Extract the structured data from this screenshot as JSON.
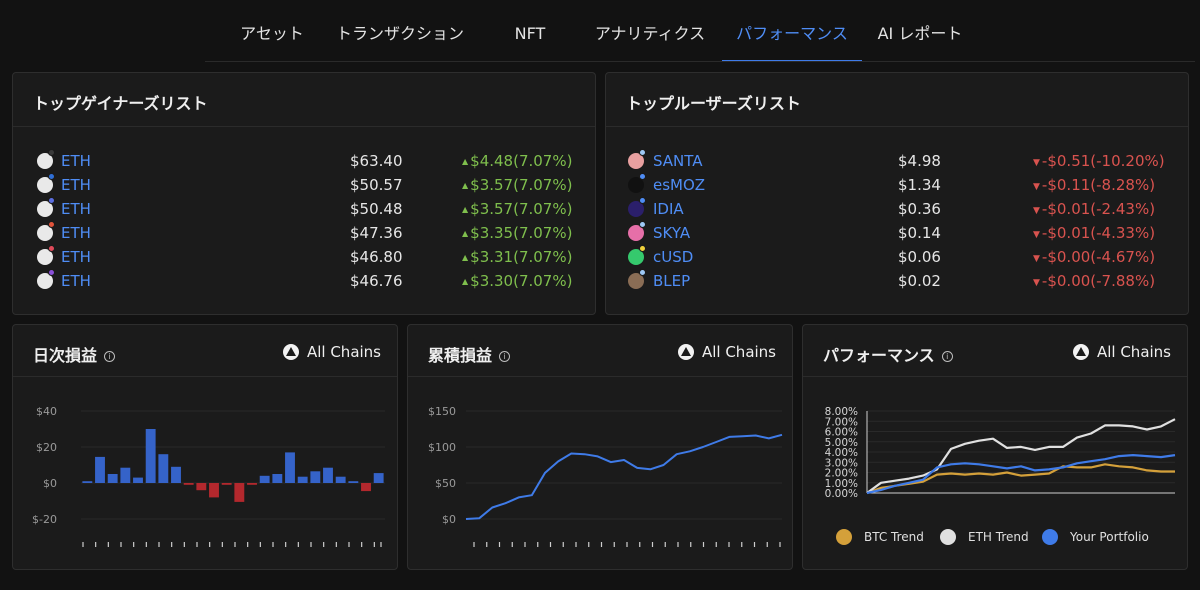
{
  "tabs": [
    {
      "label": "アセット"
    },
    {
      "label": "トランザクション"
    },
    {
      "label": "NFT"
    },
    {
      "label": "アナリティクス"
    },
    {
      "label": "パフォーマンス"
    },
    {
      "label": "AI レポート"
    }
  ],
  "gainers": {
    "title": "トップゲイナーズリスト",
    "rows": [
      {
        "name": "ETH",
        "price": "$63.40",
        "change": "$4.48(7.07%)",
        "badge_color": "#3a3a3a"
      },
      {
        "name": "ETH",
        "price": "$50.57",
        "change": "$3.57(7.07%)",
        "badge_color": "#2f6fd6"
      },
      {
        "name": "ETH",
        "price": "$50.48",
        "change": "$3.57(7.07%)",
        "badge_color": "#5b6ee0"
      },
      {
        "name": "ETH",
        "price": "$47.36",
        "change": "$3.35(7.07%)",
        "badge_color": "#e0533a"
      },
      {
        "name": "ETH",
        "price": "$46.80",
        "change": "$3.31(7.07%)",
        "badge_color": "#e04a5a"
      },
      {
        "name": "ETH",
        "price": "$46.76",
        "change": "$3.30(7.07%)",
        "badge_color": "#8a4fd8"
      }
    ]
  },
  "losers": {
    "title": "トップルーザーズリスト",
    "rows": [
      {
        "name": "SANTA",
        "price": "$4.98",
        "change": "-$0.51(-10.20%)",
        "icon_color": "#e8a0a0",
        "badge_color": "#9ec8f5"
      },
      {
        "name": "esMOZ",
        "price": "$1.34",
        "change": "-$0.11(-8.28%)",
        "icon_color": "#111111",
        "badge_color": "#4f8df5"
      },
      {
        "name": "IDIA",
        "price": "$0.36",
        "change": "-$0.01(-2.43%)",
        "icon_color": "#2b1f6b",
        "badge_color": "#4f8df5"
      },
      {
        "name": "SKYA",
        "price": "$0.14",
        "change": "-$0.01(-4.33%)",
        "icon_color": "#e66fa8",
        "badge_color": "#9ec8f5"
      },
      {
        "name": "cUSD",
        "price": "$0.06",
        "change": "-$0.00(-4.67%)",
        "icon_color": "#35c96d",
        "badge_color": "#f0d23c"
      },
      {
        "name": "BLEP",
        "price": "$0.02",
        "change": "-$0.00(-7.88%)",
        "icon_color": "#8a6d55",
        "badge_color": "#9ec8f5"
      }
    ]
  },
  "colors": {
    "accent": "#4f8df5",
    "gain": "#7fbf4d",
    "loss": "#d9534f",
    "bar_positive": "#3563c9",
    "bar_negative": "#b3282d",
    "btc": "#d4a03a",
    "eth": "#e0e0e0",
    "portfolio": "#3f7be8"
  },
  "daily": {
    "title": "日次損益",
    "chain_label": "All Chains"
  },
  "cumulative": {
    "title": "累積損益",
    "chain_label": "All Chains"
  },
  "performance": {
    "title": "パフォーマンス",
    "chain_label": "All Chains",
    "legend": {
      "btc": "BTC Trend",
      "eth": "ETH Trend",
      "portfolio": "Your Portfolio"
    }
  },
  "chart_data": [
    {
      "type": "bar",
      "title": "日次損益",
      "yticks": [
        "$40",
        "$20",
        "$0",
        "$-20"
      ],
      "ylim": [
        -20,
        40
      ],
      "values": [
        1,
        14.5,
        5,
        8.5,
        3,
        30,
        16,
        9,
        -1,
        -4,
        -8,
        -1,
        -10.5,
        -1,
        4,
        5,
        17,
        3.5,
        6.5,
        8.5,
        3.5,
        1,
        -4.5,
        5.5
      ]
    },
    {
      "type": "line",
      "title": "累積損益",
      "yticks": [
        "$150",
        "$100",
        "$50",
        "$0"
      ],
      "ylim": [
        0,
        150
      ],
      "values": [
        0,
        1,
        16,
        22,
        30,
        33,
        64,
        80,
        91,
        90,
        87,
        79,
        82,
        71,
        69,
        75,
        90,
        94,
        100,
        107,
        114,
        115,
        116,
        112,
        117
      ]
    },
    {
      "type": "line",
      "title": "パフォーマンス",
      "yticks": [
        "8.00%",
        "7.00%",
        "6.00%",
        "5.00%",
        "4.00%",
        "3.00%",
        "2.00%",
        "1.00%",
        "0.00%"
      ],
      "ylim": [
        0,
        8
      ],
      "series": [
        {
          "name": "BTC Trend",
          "values": [
            0,
            0.5,
            0.7,
            0.9,
            1.1,
            1.8,
            1.9,
            1.8,
            1.9,
            1.8,
            2.0,
            1.7,
            1.8,
            1.9,
            2.6,
            2.5,
            2.5,
            2.8,
            2.6,
            2.5,
            2.2,
            2.1,
            2.1
          ]
        },
        {
          "name": "ETH Trend",
          "values": [
            0,
            1.0,
            1.2,
            1.4,
            1.7,
            2.3,
            4.3,
            4.8,
            5.1,
            5.3,
            4.4,
            4.5,
            4.2,
            4.5,
            4.5,
            5.4,
            5.8,
            6.6,
            6.6,
            6.5,
            6.2,
            6.5,
            7.2
          ]
        },
        {
          "name": "Your Portfolio",
          "values": [
            0,
            0.3,
            0.7,
            1.0,
            1.3,
            2.5,
            2.8,
            2.9,
            2.8,
            2.6,
            2.4,
            2.6,
            2.2,
            2.3,
            2.5,
            2.9,
            3.1,
            3.3,
            3.6,
            3.7,
            3.6,
            3.5,
            3.7
          ]
        }
      ]
    }
  ]
}
